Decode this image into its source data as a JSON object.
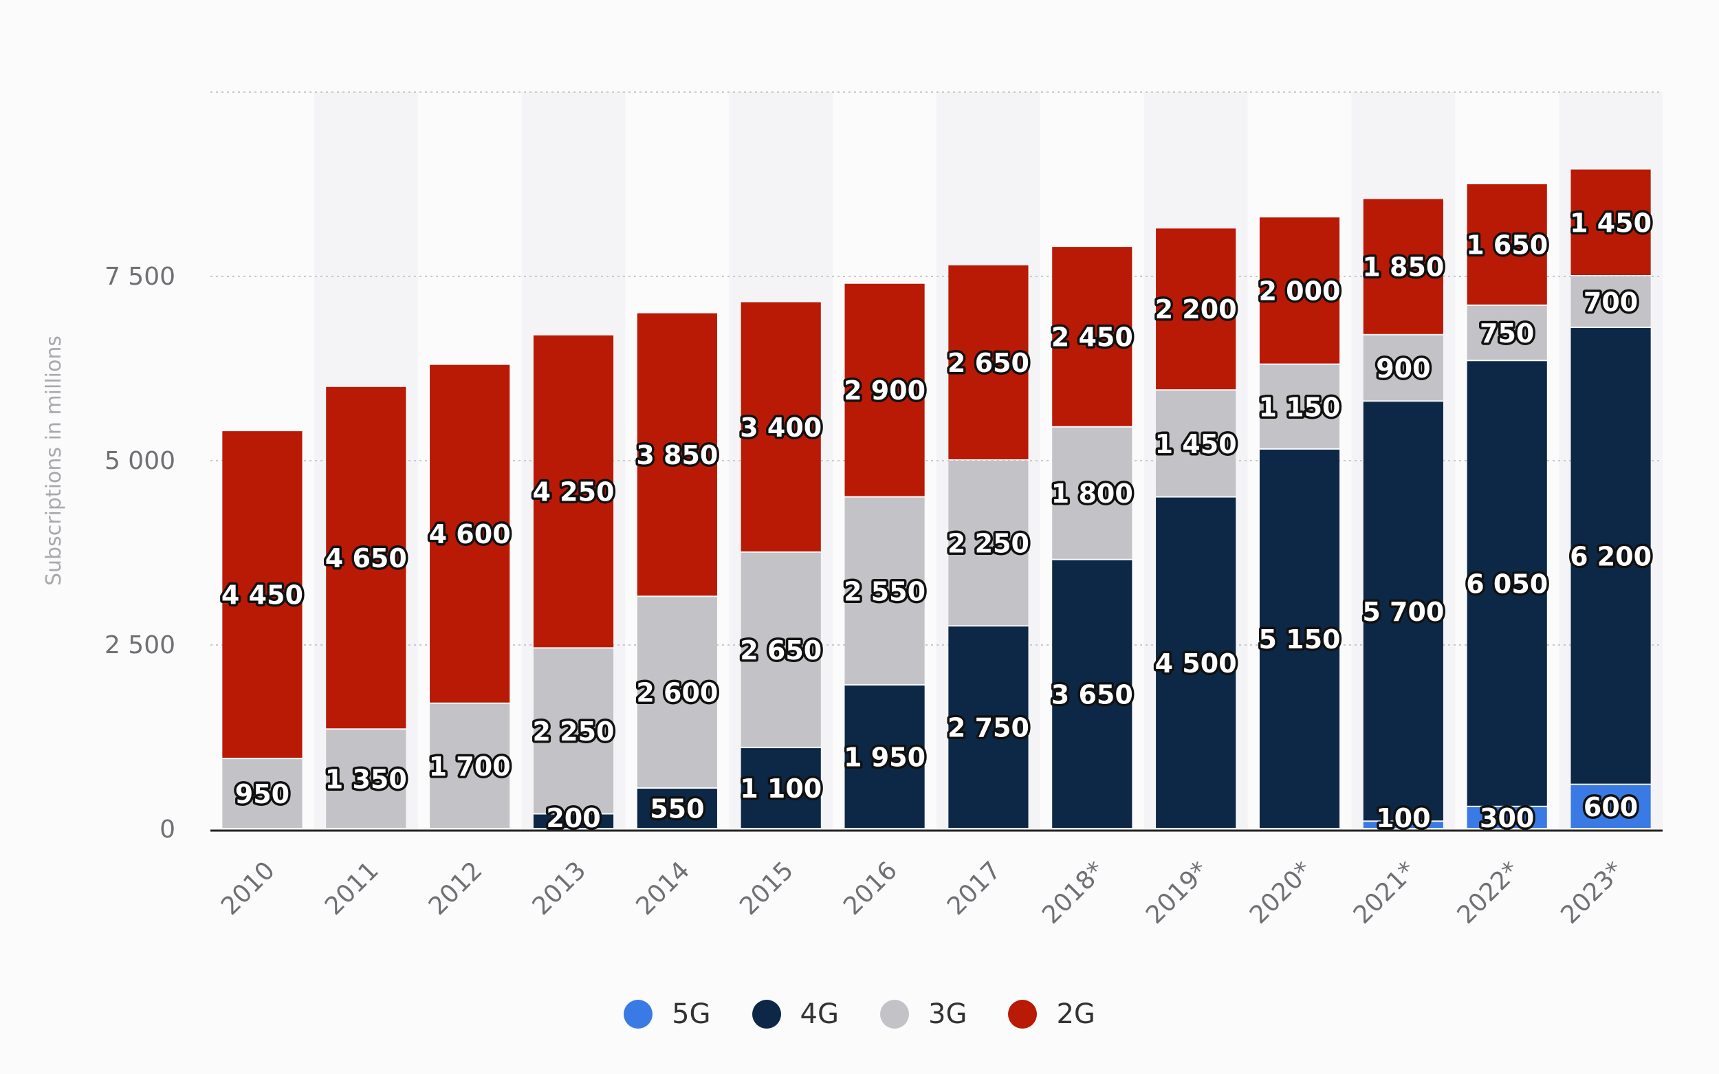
{
  "chart_data": {
    "type": "bar",
    "stacked": true,
    "title": "",
    "xlabel": "",
    "ylabel": "Subscriptions in millions",
    "ylim": [
      0,
      10000
    ],
    "yticks": [
      0,
      2500,
      5000,
      7500,
      10000
    ],
    "ytick_labels": [
      "0",
      "2 500",
      "5 000",
      "7 500",
      ""
    ],
    "grid": true,
    "legend_position": "bottom",
    "categories": [
      "2010",
      "2011",
      "2012",
      "2013",
      "2014",
      "2015",
      "2016",
      "2017",
      "2018*",
      "2019*",
      "2020*",
      "2021*",
      "2022*",
      "2023*"
    ],
    "series": [
      {
        "name": "5G",
        "color": "#3a7ae4",
        "values": [
          0,
          0,
          0,
          0,
          0,
          0,
          0,
          0,
          0,
          0,
          0,
          100,
          300,
          600
        ]
      },
      {
        "name": "4G",
        "color": "#0d2846",
        "values": [
          0,
          0,
          0,
          200,
          550,
          1100,
          1950,
          2750,
          3650,
          4500,
          5150,
          5700,
          6050,
          6200
        ]
      },
      {
        "name": "3G",
        "color": "#c3c2c6",
        "values": [
          950,
          1350,
          1700,
          2250,
          2600,
          2650,
          2550,
          2250,
          1800,
          1450,
          1150,
          900,
          750,
          700
        ]
      },
      {
        "name": "2G",
        "color": "#b81a05",
        "values": [
          4450,
          4650,
          4600,
          4250,
          3850,
          3400,
          2900,
          2650,
          2450,
          2200,
          2000,
          1850,
          1650,
          1450
        ]
      }
    ]
  }
}
